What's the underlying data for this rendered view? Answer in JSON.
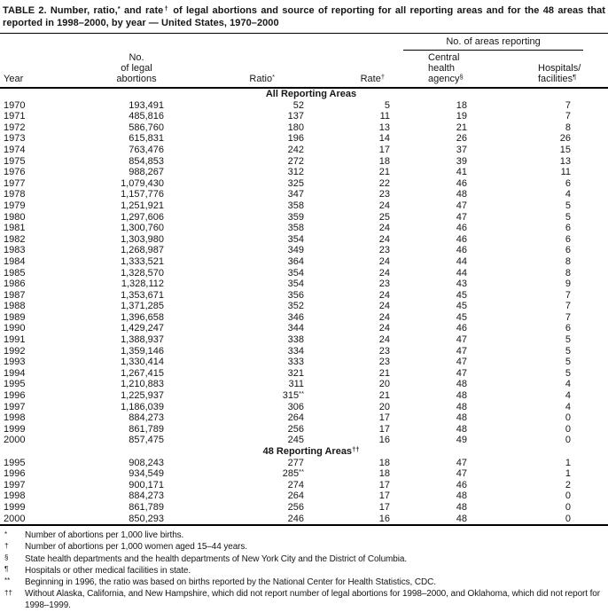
{
  "title": {
    "parts": [
      {
        "text": "TABLE 2. Number, ratio,"
      },
      {
        "sup": "*"
      },
      {
        "text": " and rate"
      },
      {
        "sup": "†"
      },
      {
        "text": " of legal abortions and source of reporting for all reporting areas and for the 48 areas that reported in 1998–2000, by year — United States, 1970–2000"
      }
    ]
  },
  "table": {
    "group_header": "No. of areas reporting",
    "columns": [
      {
        "lines": [
          "Year"
        ]
      },
      {
        "lines": [
          "No.",
          "of legal",
          "abortions"
        ]
      },
      {
        "lines": [
          "Ratio*"
        ]
      },
      {
        "lines": [
          "Rate†"
        ]
      },
      {
        "lines": [
          "Central",
          "health",
          "agency§"
        ]
      },
      {
        "lines": [
          "Hospitals/",
          "facilities¶"
        ]
      }
    ],
    "sections": [
      {
        "label": "All Reporting Areas",
        "rows": [
          [
            "1970",
            "193,491",
            "52",
            "5",
            "18",
            "7"
          ],
          [
            "1971",
            "485,816",
            "137",
            "11",
            "19",
            "7"
          ],
          [
            "1972",
            "586,760",
            "180",
            "13",
            "21",
            "8"
          ],
          [
            "1973",
            "615,831",
            "196",
            "14",
            "26",
            "26"
          ],
          [
            "1974",
            "763,476",
            "242",
            "17",
            "37",
            "15"
          ],
          [
            "1975",
            "854,853",
            "272",
            "18",
            "39",
            "13"
          ],
          [
            "1976",
            "988,267",
            "312",
            "21",
            "41",
            "11"
          ],
          [
            "1977",
            "1,079,430",
            "325",
            "22",
            "46",
            "6"
          ],
          [
            "1978",
            "1,157,776",
            "347",
            "23",
            "48",
            "4"
          ],
          [
            "1979",
            "1,251,921",
            "358",
            "24",
            "47",
            "5"
          ],
          [
            "1980",
            "1,297,606",
            "359",
            "25",
            "47",
            "5"
          ],
          [
            "1981",
            "1,300,760",
            "358",
            "24",
            "46",
            "6"
          ],
          [
            "1982",
            "1,303,980",
            "354",
            "24",
            "46",
            "6"
          ],
          [
            "1983",
            "1,268,987",
            "349",
            "23",
            "46",
            "6"
          ],
          [
            "1984",
            "1,333,521",
            "364",
            "24",
            "44",
            "8"
          ],
          [
            "1985",
            "1,328,570",
            "354",
            "24",
            "44",
            "8"
          ],
          [
            "1986",
            "1,328,112",
            "354",
            "23",
            "43",
            "9"
          ],
          [
            "1987",
            "1,353,671",
            "356",
            "24",
            "45",
            "7"
          ],
          [
            "1988",
            "1,371,285",
            "352",
            "24",
            "45",
            "7"
          ],
          [
            "1989",
            "1,396,658",
            "346",
            "24",
            "45",
            "7"
          ],
          [
            "1990",
            "1,429,247",
            "344",
            "24",
            "46",
            "6"
          ],
          [
            "1991",
            "1,388,937",
            "338",
            "24",
            "47",
            "5"
          ],
          [
            "1992",
            "1,359,146",
            "334",
            "23",
            "47",
            "5"
          ],
          [
            "1993",
            "1,330,414",
            "333",
            "23",
            "47",
            "5"
          ],
          [
            "1994",
            "1,267,415",
            "321",
            "21",
            "47",
            "5"
          ],
          [
            "1995",
            "1,210,883",
            "311",
            "20",
            "48",
            "4"
          ],
          [
            "1996",
            "1,225,937",
            "315**",
            "21",
            "48",
            "4"
          ],
          [
            "1997",
            "1,186,039",
            "306",
            "20",
            "48",
            "4"
          ],
          [
            "1998",
            "884,273",
            "264",
            "17",
            "48",
            "0"
          ],
          [
            "1999",
            "861,789",
            "256",
            "17",
            "48",
            "0"
          ],
          [
            "2000",
            "857,475",
            "245",
            "16",
            "49",
            "0"
          ]
        ]
      },
      {
        "label": "48 Reporting Areas††",
        "rows": [
          [
            "1995",
            "908,243",
            "277",
            "18",
            "47",
            "1"
          ],
          [
            "1996",
            "934,549",
            "285**",
            "18",
            "47",
            "1"
          ],
          [
            "1997",
            "900,171",
            "274",
            "17",
            "46",
            "2"
          ],
          [
            "1998",
            "884,273",
            "264",
            "17",
            "48",
            "0"
          ],
          [
            "1999",
            "861,789",
            "256",
            "17",
            "48",
            "0"
          ],
          [
            "2000",
            "850,293",
            "246",
            "16",
            "48",
            "0"
          ]
        ]
      }
    ]
  },
  "footnotes": [
    {
      "marker": "*",
      "text": "Number of abortions per 1,000 live births."
    },
    {
      "marker": "†",
      "text": "Number of abortions per 1,000 women aged 15–44 years."
    },
    {
      "marker": "§",
      "text": "State health departments and the health departments of New York City and the District of Columbia."
    },
    {
      "marker": "¶",
      "text": "Hospitals or other medical facilities in state."
    },
    {
      "marker": "**",
      "text": "Beginning in 1996, the ratio was based on births reported by the National Center for Health Statistics, CDC."
    },
    {
      "marker": "††",
      "text": "Without Alaska, California, and New Hampshire, which did not report number of legal abortions for 1998–2000, and Oklahoma, which did not report for 1998–1999."
    }
  ],
  "colors": {
    "text": "#161616",
    "rule": "#000000",
    "background": "#ffffff"
  }
}
